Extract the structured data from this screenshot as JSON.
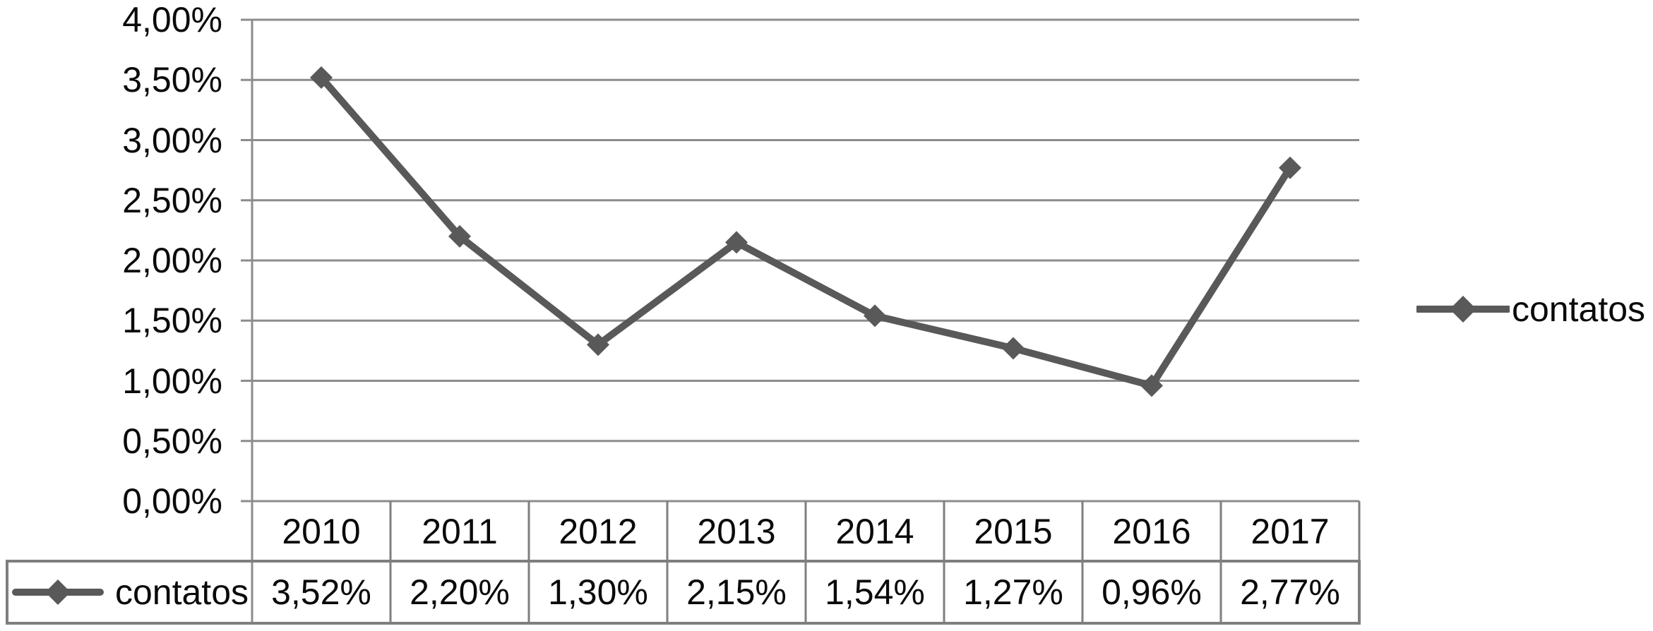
{
  "chart_data": {
    "type": "line",
    "title": "",
    "xlabel": "",
    "ylabel": "",
    "categories": [
      "2010",
      "2011",
      "2012",
      "2013",
      "2014",
      "2015",
      "2016",
      "2017"
    ],
    "series": [
      {
        "name": "contatos",
        "values": [
          3.52,
          2.2,
          1.3,
          2.15,
          1.54,
          1.27,
          0.96,
          2.77
        ],
        "value_labels": [
          "3,52%",
          "2,20%",
          "1,30%",
          "2,15%",
          "1,54%",
          "1,27%",
          "0,96%",
          "2,77%"
        ]
      }
    ],
    "y_axis": {
      "min": 0,
      "max": 4,
      "step": 0.5,
      "tick_labels_top_to_bottom": [
        "4,00%",
        "3,50%",
        "3,00%",
        "2,50%",
        "2,00%",
        "1,50%",
        "1,00%",
        "0,50%",
        "0,00%"
      ]
    },
    "grid": true,
    "legend_position": "right",
    "legend_label": "contatos",
    "data_table_shown": true,
    "colors": {
      "series": "#595959",
      "gridline": "#8c8c8c",
      "table_border": "#7f7f7f",
      "text": "#0a0a0a",
      "background": "#ffffff"
    }
  }
}
